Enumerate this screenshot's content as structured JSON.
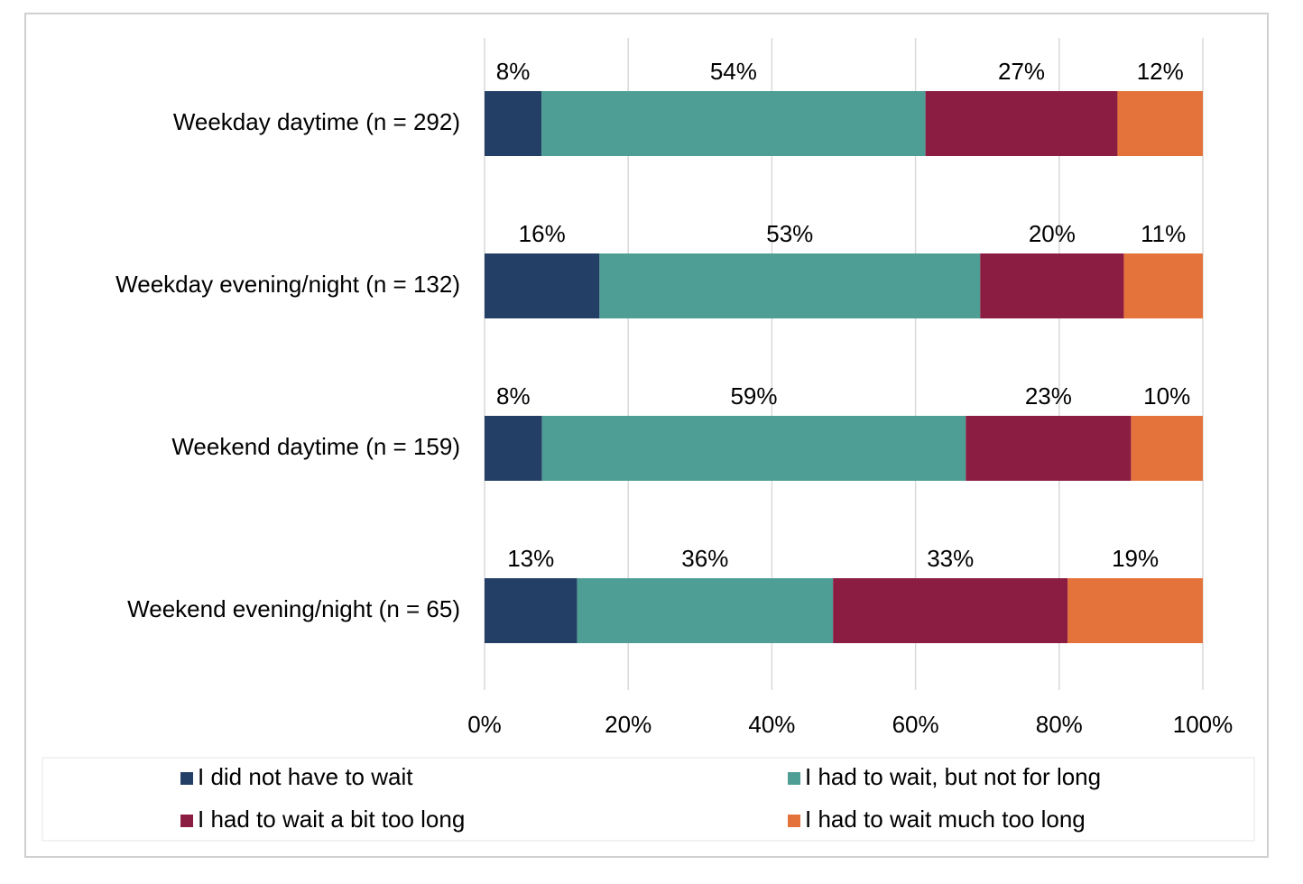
{
  "chart_data": {
    "type": "bar",
    "orientation": "horizontal",
    "stacking": "percent",
    "categories": [
      "Weekday daytime (n = 292)",
      "Weekday evening/night (n = 132)",
      "Weekend daytime (n = 159)",
      "Weekend evening/night (n = 65)"
    ],
    "series": [
      {
        "name": "I did not have to wait",
        "color": "#243f66",
        "values": [
          8,
          16,
          8,
          13
        ],
        "value_labels": [
          "8%",
          "16%",
          "8%",
          "13%"
        ]
      },
      {
        "name": "I had to wait, but not for long",
        "color": "#4e9e96",
        "values": [
          54,
          53,
          59,
          36
        ],
        "value_labels": [
          "54%",
          "53%",
          "59%",
          "36%"
        ]
      },
      {
        "name": "I had to wait a bit too long",
        "color": "#8b1c42",
        "values": [
          27,
          20,
          23,
          33
        ],
        "value_labels": [
          "27%",
          "20%",
          "23%",
          "33%"
        ]
      },
      {
        "name": "I had to wait much too long",
        "color": "#e3733a",
        "values": [
          12,
          11,
          10,
          19
        ],
        "value_labels": [
          "12%",
          "11%",
          "10%",
          "19%"
        ]
      }
    ],
    "xlim": [
      0,
      100
    ],
    "xticks": [
      {
        "value": 0,
        "label": "0%"
      },
      {
        "value": 20,
        "label": "20%"
      },
      {
        "value": 40,
        "label": "40%"
      },
      {
        "value": 60,
        "label": "60%"
      },
      {
        "value": 80,
        "label": "80%"
      },
      {
        "value": 100,
        "label": "100%"
      }
    ],
    "grid": true,
    "legend": "bottom"
  }
}
